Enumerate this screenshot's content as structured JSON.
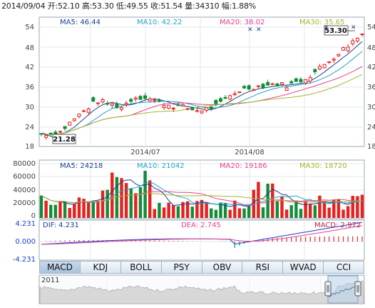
{
  "info": {
    "date": "2014/09/04",
    "open_label": "开:",
    "open": "52.10",
    "high_label": "高:",
    "high": "53.30",
    "low_label": "低:",
    "low": "49.55",
    "close_label": "收:",
    "close": "51.54",
    "volume_label": "量:",
    "volume": "34310",
    "change_label": "幅:",
    "change": "1.88%"
  },
  "price_panel": {
    "ma5_label": "MA5: 46.44",
    "ma10_label": "MA10: 42.22",
    "ma20_label": "MA20: 38.02",
    "ma30_label": "MA30: 35.65",
    "y_ticks": [
      "54",
      "48",
      "42",
      "36",
      "30",
      "24",
      "18"
    ],
    "x_labels": [
      "2014/07",
      "2014/08"
    ],
    "max_marker": "53.30",
    "min_marker": "21.28"
  },
  "volume_panel": {
    "ma5_label": "MA5: 24218",
    "ma10_label": "MA10: 21042",
    "ma20_label": "MA20: 19186",
    "ma30_label": "MA30: 18720",
    "y_ticks": [
      "80000",
      "60000",
      "40000",
      "20000",
      "0"
    ]
  },
  "macd_panel": {
    "dif_label": "DIF: 4.231",
    "dea_label": "DEA: 2.745",
    "macd_label": "MACD: 2.972",
    "y_ticks": [
      "4.231",
      "0.000",
      "-4.231"
    ]
  },
  "tabs": [
    "MACD",
    "KDJ",
    "BOLL",
    "PSY",
    "OBV",
    "RSI",
    "WVAD",
    "CCI"
  ],
  "navigator": {
    "year": "2011"
  },
  "colors": {
    "up": "#e8201e",
    "down": "#118c3a",
    "ma5": "#1a3f8f",
    "ma10": "#21a3c9",
    "ma20": "#e6418a",
    "ma30": "#a5b52c"
  }
}
